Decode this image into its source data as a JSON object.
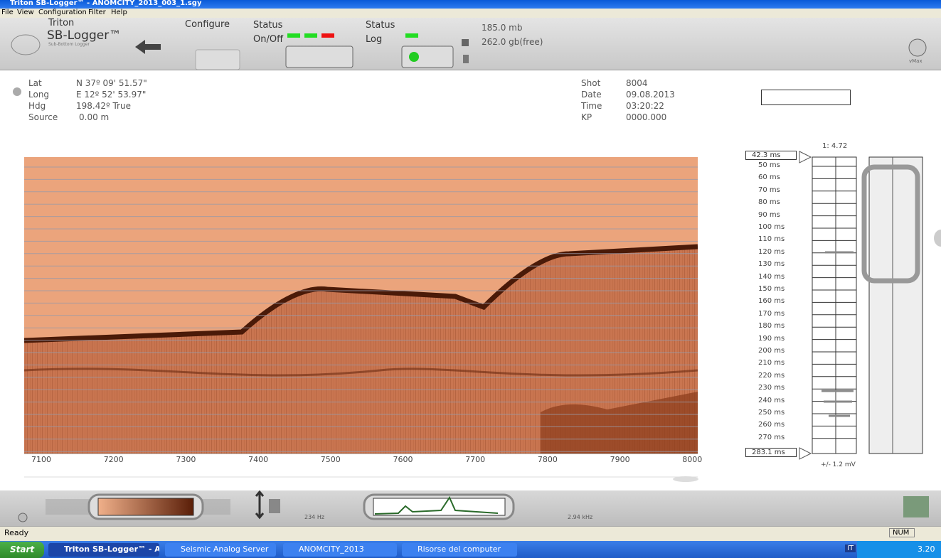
{
  "window": {
    "title": "Triton SB-Logger™ - ANOMCITY_2013_003_1.sgy"
  },
  "menu": [
    "File",
    "View",
    "Configuration",
    "Filter",
    "Help"
  ],
  "toolbar": {
    "logo_line1": "Triton",
    "logo_line2": "SB-Logger™",
    "logo_line3": "Sub-Bottom Logger",
    "configure": "Configure",
    "status1": "Status",
    "onoff": "On/Off",
    "status2": "Status",
    "log": "Log",
    "disk_used": "185.0 mb",
    "disk_free": "262.0 gb(free)",
    "vmax": "vMax"
  },
  "nav": {
    "labels": [
      "Lat",
      "Long",
      "Hdg",
      "Source"
    ],
    "values": [
      "N 37º 09' 51.57\"",
      "E 12º 52' 53.97\"",
      "198.42º True",
      "0.00 m"
    ]
  },
  "shot": {
    "labels": [
      "Shot",
      "Date",
      "Time",
      "KP"
    ],
    "values": [
      "8004",
      "09.08.2013",
      "03:20:22",
      "0000.000"
    ]
  },
  "profile": {
    "x_labels": [
      7100,
      7200,
      7300,
      7400,
      7500,
      7600,
      7700,
      7800,
      7900,
      8000
    ]
  },
  "scale": {
    "ratio": "1: 4.72",
    "top": "42.3 ms",
    "bottom": "283.1 ms",
    "depth_labels": [
      "50 ms",
      "60 ms",
      "70 ms",
      "80 ms",
      "90 ms",
      "100 ms",
      "110 ms",
      "120 ms",
      "130 ms",
      "140 ms",
      "150 ms",
      "160 ms",
      "170 ms",
      "180 ms",
      "190 ms",
      "200 ms",
      "210 ms",
      "220 ms",
      "230 ms",
      "240 ms",
      "250 ms",
      "260 ms",
      "270 ms"
    ],
    "amplitude": "+/- 1.2 mV"
  },
  "filter": {
    "low": "234 Hz",
    "high": "2.94 kHz"
  },
  "status_bar": {
    "text": "Ready",
    "num": "NUM"
  },
  "taskbar": {
    "start": "Start",
    "tasks": [
      "Triton SB-Logger™ - A...",
      "Seismic Analog Server",
      "ANOMCITY_2013",
      "Risorse del computer"
    ],
    "lang": "IT",
    "clock": "3.20"
  }
}
